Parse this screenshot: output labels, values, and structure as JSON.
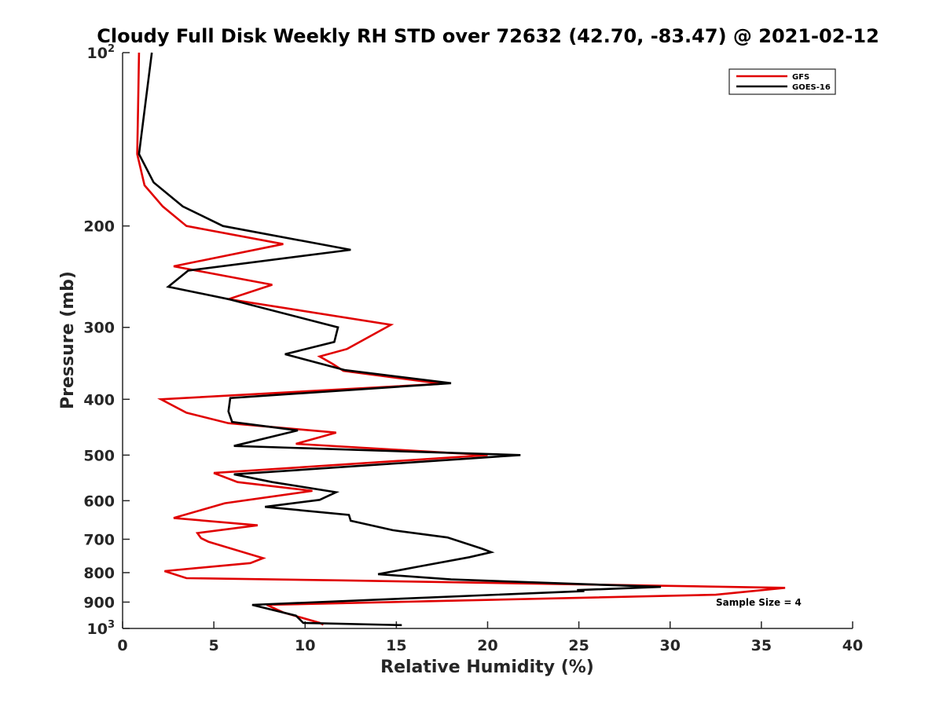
{
  "chart_data": {
    "type": "line",
    "title": "Cloudy Full Disk Weekly RH STD over 72632 (42.70, -83.47) @ 2021-02-12",
    "xlabel": "Relative Humidity (%)",
    "ylabel": "Pressure (mb)",
    "xlim": [
      0,
      40
    ],
    "ylim": [
      100,
      1000
    ],
    "y_scale": "log",
    "y_reversed": true,
    "grid": false,
    "legend_position": "top-right",
    "x_ticks": [
      "0",
      "5",
      "10",
      "15",
      "20",
      "25",
      "30",
      "35",
      "40"
    ],
    "y_ticks": [
      {
        "value": 100,
        "base": "10",
        "exp": "2"
      },
      {
        "value": 200,
        "base": "200",
        "exp": ""
      },
      {
        "value": 300,
        "base": "300",
        "exp": ""
      },
      {
        "value": 400,
        "base": "400",
        "exp": ""
      },
      {
        "value": 500,
        "base": "500",
        "exp": ""
      },
      {
        "value": 600,
        "base": "600",
        "exp": ""
      },
      {
        "value": 700,
        "base": "700",
        "exp": ""
      },
      {
        "value": 800,
        "base": "800",
        "exp": ""
      },
      {
        "value": 900,
        "base": "900",
        "exp": ""
      },
      {
        "value": 1000,
        "base": "10",
        "exp": "3"
      }
    ],
    "annotation": "Sample Size = 4",
    "series": [
      {
        "name": "GFS",
        "color": "#e00000",
        "points": [
          [
            0.9,
            100
          ],
          [
            0.85,
            125
          ],
          [
            0.8,
            150
          ],
          [
            1.2,
            170
          ],
          [
            2.2,
            185
          ],
          [
            3.5,
            200
          ],
          [
            8.8,
            215
          ],
          [
            2.8,
            235
          ],
          [
            8.2,
            253
          ],
          [
            5.8,
            268
          ],
          [
            14.7,
            297
          ],
          [
            12.3,
            327
          ],
          [
            10.8,
            337
          ],
          [
            11.5,
            347
          ],
          [
            12.1,
            357
          ],
          [
            17.5,
            376
          ],
          [
            2.1,
            400
          ],
          [
            3.5,
            422
          ],
          [
            5.8,
            440
          ],
          [
            11.7,
            457
          ],
          [
            9.5,
            478
          ],
          [
            20.0,
            500
          ],
          [
            5.0,
            537
          ],
          [
            6.3,
            557
          ],
          [
            10.4,
            577
          ],
          [
            5.6,
            606
          ],
          [
            2.8,
            643
          ],
          [
            7.4,
            662
          ],
          [
            4.1,
            683
          ],
          [
            4.3,
            697
          ],
          [
            4.7,
            707
          ],
          [
            7.7,
            755
          ],
          [
            7.0,
            770
          ],
          [
            2.3,
            795
          ],
          [
            3.5,
            818
          ],
          [
            12.0,
            825
          ],
          [
            36.3,
            850
          ],
          [
            32.5,
            874
          ],
          [
            7.9,
            910
          ],
          [
            8.8,
            938
          ],
          [
            10.8,
            978
          ],
          [
            11.0,
            985
          ]
        ]
      },
      {
        "name": "GOES-16",
        "color": "#000000",
        "points": [
          [
            1.6,
            100
          ],
          [
            0.9,
            150
          ],
          [
            1.7,
            168
          ],
          [
            3.3,
            185
          ],
          [
            5.5,
            200
          ],
          [
            12.5,
            220
          ],
          [
            3.6,
            239
          ],
          [
            2.5,
            255
          ],
          [
            5.8,
            268
          ],
          [
            11.8,
            300
          ],
          [
            11.6,
            318
          ],
          [
            8.9,
            334
          ],
          [
            12.2,
            356
          ],
          [
            18.0,
            375
          ],
          [
            5.9,
            398
          ],
          [
            5.8,
            420
          ],
          [
            6.0,
            438
          ],
          [
            9.6,
            453
          ],
          [
            6.1,
            482
          ],
          [
            21.8,
            500
          ],
          [
            6.1,
            540
          ],
          [
            8.2,
            557
          ],
          [
            11.7,
            580
          ],
          [
            10.8,
            598
          ],
          [
            7.8,
            615
          ],
          [
            12.4,
            635
          ],
          [
            12.5,
            650
          ],
          [
            14.8,
            675
          ],
          [
            17.8,
            695
          ],
          [
            19.7,
            727
          ],
          [
            20.2,
            737
          ],
          [
            19.0,
            752
          ],
          [
            16.3,
            780
          ],
          [
            14.0,
            805
          ],
          [
            18.0,
            822
          ],
          [
            29.5,
            847
          ],
          [
            24.9,
            858
          ],
          [
            25.3,
            861
          ],
          [
            7.1,
            910
          ],
          [
            9.5,
            950
          ],
          [
            9.9,
            978
          ],
          [
            15.3,
            987
          ]
        ]
      }
    ]
  }
}
